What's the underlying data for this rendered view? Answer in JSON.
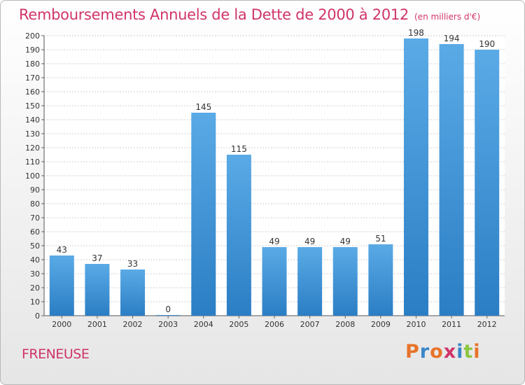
{
  "header": {
    "title": "Remboursements Annuels de la Dette de 2000 à 2012",
    "unit": "(en milliers d'€)"
  },
  "footer": {
    "commune": "FRENEUSE",
    "logo_text": "Proxiti",
    "logo_colors": [
      "#e8732a",
      "#3a86c8",
      "#e8732a",
      "#d0346a",
      "#3a86c8",
      "#8cc63e",
      "#e8732a"
    ]
  },
  "chart_data": {
    "type": "bar",
    "categories": [
      "2000",
      "2001",
      "2002",
      "2003",
      "2004",
      "2005",
      "2006",
      "2007",
      "2008",
      "2009",
      "2010",
      "2011",
      "2012"
    ],
    "values": [
      43,
      37,
      33,
      0,
      145,
      115,
      49,
      49,
      49,
      51,
      198,
      194,
      190
    ],
    "ylim": [
      0,
      200
    ],
    "ytick_step": 10,
    "grid": true,
    "bar_color_top": "#5aaae6",
    "bar_color_bottom": "#2b7ec4"
  }
}
